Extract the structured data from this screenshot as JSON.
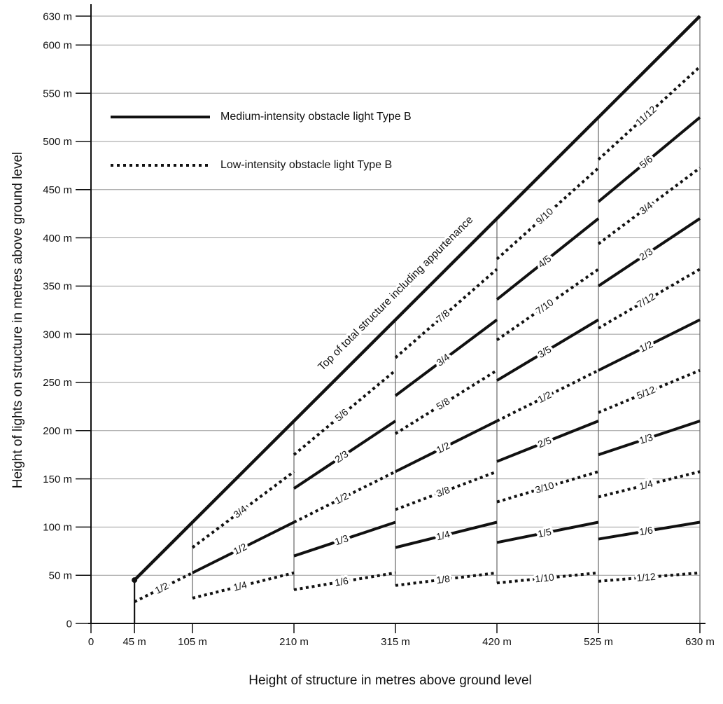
{
  "chart_data": {
    "type": "line",
    "title": "",
    "xlabel": "Height of structure in metres above ground level",
    "ylabel": "Height of lights on structure in metres above ground level",
    "xlim": [
      0,
      630
    ],
    "ylim": [
      0,
      630
    ],
    "grid": "horizontal gray gridlines every 50 m, vertical lines at band boundaries",
    "x_ticks": [
      {
        "value": 0,
        "label": "0"
      },
      {
        "value": 45,
        "label": "45 m"
      },
      {
        "value": 105,
        "label": "105 m"
      },
      {
        "value": 210,
        "label": "210 m"
      },
      {
        "value": 315,
        "label": "315 m"
      },
      {
        "value": 420,
        "label": "420 m"
      },
      {
        "value": 525,
        "label": "525 m"
      },
      {
        "value": 630,
        "label": "630 m"
      }
    ],
    "y_ticks": [
      {
        "value": 0,
        "label": "0"
      },
      {
        "value": 50,
        "label": "50 m"
      },
      {
        "value": 100,
        "label": "100 m"
      },
      {
        "value": 150,
        "label": "150 m"
      },
      {
        "value": 200,
        "label": "200 m"
      },
      {
        "value": 250,
        "label": "250 m"
      },
      {
        "value": 300,
        "label": "300 m"
      },
      {
        "value": 350,
        "label": "350 m"
      },
      {
        "value": 400,
        "label": "400 m"
      },
      {
        "value": 450,
        "label": "450 m"
      },
      {
        "value": 500,
        "label": "500 m"
      },
      {
        "value": 550,
        "label": "550 m"
      },
      {
        "value": 600,
        "label": "600 m"
      },
      {
        "value": 630,
        "label": "630 m"
      }
    ],
    "legend": [
      {
        "style": "solid",
        "label": "Medium-intensity obstacle light Type B"
      },
      {
        "style": "dotted",
        "label": "Low-intensity obstacle light Type B"
      }
    ],
    "envelope": {
      "label": "Top of total structure including appurtenance",
      "from": [
        45,
        45
      ],
      "to": [
        630,
        630
      ],
      "style": "solid"
    },
    "structure_column": {
      "x": 45,
      "y_from": 0,
      "y_to": 45,
      "top_marker": "dot"
    },
    "band_boundaries": [
      {
        "x": 105,
        "y_bottom": 26.25
      },
      {
        "x": 210,
        "y_bottom": 35
      },
      {
        "x": 315,
        "y_bottom": 39.375
      },
      {
        "x": 420,
        "y_bottom": 42
      },
      {
        "x": 525,
        "y_bottom": 0
      },
      {
        "x": 630,
        "y_bottom": 0
      }
    ],
    "bands": [
      {
        "x0": 45,
        "x1": 105,
        "levels": [
          {
            "fraction": "1/2",
            "value": 0.5,
            "style": "dotted"
          }
        ]
      },
      {
        "x0": 105,
        "x1": 210,
        "levels": [
          {
            "fraction": "3/4",
            "value": 0.75,
            "style": "dotted"
          },
          {
            "fraction": "1/2",
            "value": 0.5,
            "style": "solid"
          },
          {
            "fraction": "1/4",
            "value": 0.25,
            "style": "dotted"
          }
        ]
      },
      {
        "x0": 210,
        "x1": 315,
        "levels": [
          {
            "fraction": "5/6",
            "value": 0.8333,
            "style": "dotted"
          },
          {
            "fraction": "2/3",
            "value": 0.6667,
            "style": "solid"
          },
          {
            "fraction": "1/2",
            "value": 0.5,
            "style": "dotted"
          },
          {
            "fraction": "1/3",
            "value": 0.3333,
            "style": "solid"
          },
          {
            "fraction": "1/6",
            "value": 0.1667,
            "style": "dotted"
          }
        ]
      },
      {
        "x0": 315,
        "x1": 420,
        "levels": [
          {
            "fraction": "7/8",
            "value": 0.875,
            "style": "dotted"
          },
          {
            "fraction": "3/4",
            "value": 0.75,
            "style": "solid"
          },
          {
            "fraction": "5/8",
            "value": 0.625,
            "style": "dotted"
          },
          {
            "fraction": "1/2",
            "value": 0.5,
            "style": "solid"
          },
          {
            "fraction": "3/8",
            "value": 0.375,
            "style": "dotted"
          },
          {
            "fraction": "1/4",
            "value": 0.25,
            "style": "solid"
          },
          {
            "fraction": "1/8",
            "value": 0.125,
            "style": "dotted"
          }
        ]
      },
      {
        "x0": 420,
        "x1": 525,
        "levels": [
          {
            "fraction": "9/10",
            "value": 0.9,
            "style": "dotted"
          },
          {
            "fraction": "4/5",
            "value": 0.8,
            "style": "solid"
          },
          {
            "fraction": "7/10",
            "value": 0.7,
            "style": "dotted"
          },
          {
            "fraction": "3/5",
            "value": 0.6,
            "style": "solid"
          },
          {
            "fraction": "1/2",
            "value": 0.5,
            "style": "dotted"
          },
          {
            "fraction": "2/5",
            "value": 0.4,
            "style": "solid"
          },
          {
            "fraction": "3/10",
            "value": 0.3,
            "style": "dotted"
          },
          {
            "fraction": "1/5",
            "value": 0.2,
            "style": "solid"
          },
          {
            "fraction": "1/10",
            "value": 0.1,
            "style": "dotted"
          }
        ]
      },
      {
        "x0": 525,
        "x1": 630,
        "levels": [
          {
            "fraction": "11/12",
            "value": 0.9167,
            "style": "dotted"
          },
          {
            "fraction": "5/6",
            "value": 0.8333,
            "style": "solid"
          },
          {
            "fraction": "3/4",
            "value": 0.75,
            "style": "dotted"
          },
          {
            "fraction": "2/3",
            "value": 0.6667,
            "style": "solid"
          },
          {
            "fraction": "7/12",
            "value": 0.5833,
            "style": "dotted"
          },
          {
            "fraction": "1/2",
            "value": 0.5,
            "style": "solid"
          },
          {
            "fraction": "5/12",
            "value": 0.4167,
            "style": "dotted"
          },
          {
            "fraction": "1/3",
            "value": 0.3333,
            "style": "solid"
          },
          {
            "fraction": "1/4",
            "value": 0.25,
            "style": "dotted"
          },
          {
            "fraction": "1/6",
            "value": 0.1667,
            "style": "solid"
          },
          {
            "fraction": "1/12",
            "value": 0.0833,
            "style": "dotted"
          }
        ]
      }
    ],
    "colors": {
      "line": "#111111",
      "gridline": "#9b9b9b",
      "band_boundary": "#666666",
      "background": "#ffffff"
    }
  }
}
